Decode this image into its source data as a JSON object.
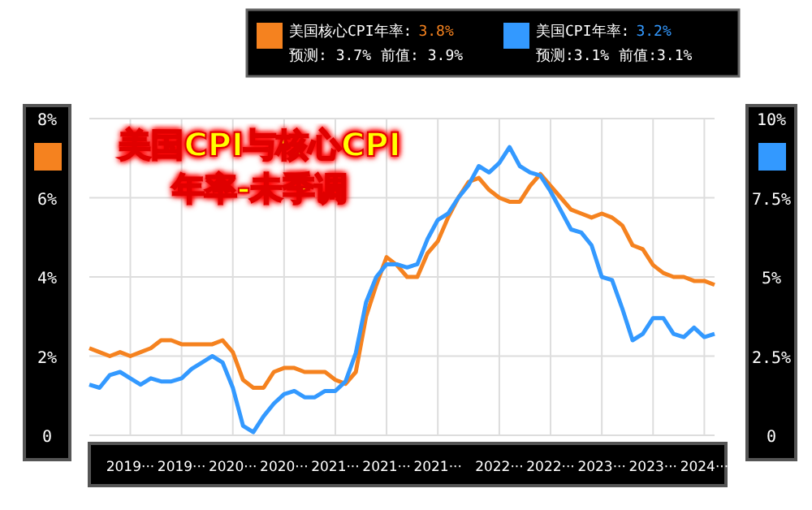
{
  "chart_data": {
    "type": "line",
    "title": "美国CPI与核心CPI 年率-未季调",
    "x": [
      "2019-01",
      "2019-02",
      "2019-03",
      "2019-04",
      "2019-05",
      "2019-06",
      "2019-07",
      "2019-08",
      "2019-09",
      "2019-10",
      "2019-11",
      "2019-12",
      "2020-01",
      "2020-02",
      "2020-03",
      "2020-04",
      "2020-05",
      "2020-06",
      "2020-07",
      "2020-08",
      "2020-09",
      "2020-10",
      "2020-11",
      "2020-12",
      "2021-01",
      "2021-02",
      "2021-03",
      "2021-04",
      "2021-05",
      "2021-06",
      "2021-07",
      "2021-08",
      "2021-09",
      "2021-10",
      "2021-11",
      "2021-12",
      "2022-01",
      "2022-02",
      "2022-03",
      "2022-04",
      "2022-05",
      "2022-06",
      "2022-07",
      "2022-08",
      "2022-09",
      "2022-10",
      "2022-11",
      "2022-12",
      "2023-01",
      "2023-02",
      "2023-03",
      "2023-04",
      "2023-05",
      "2023-06",
      "2023-07",
      "2023-08",
      "2023-09",
      "2023-10",
      "2023-11",
      "2023-12",
      "2024-01",
      "2024-02"
    ],
    "series": [
      {
        "name": "美国核心CPI年率:",
        "color": "#f5821f",
        "values": [
          2.2,
          2.1,
          2.0,
          2.1,
          2.0,
          2.1,
          2.2,
          2.4,
          2.4,
          2.3,
          2.3,
          2.3,
          2.3,
          2.4,
          2.1,
          1.4,
          1.2,
          1.2,
          1.6,
          1.7,
          1.7,
          1.6,
          1.6,
          1.6,
          1.4,
          1.3,
          1.6,
          3.0,
          3.8,
          4.5,
          4.3,
          4.0,
          4.0,
          4.6,
          4.9,
          5.5,
          6.0,
          6.4,
          6.5,
          6.2,
          6.0,
          5.9,
          5.9,
          6.3,
          6.6,
          6.3,
          6.0,
          5.7,
          5.6,
          5.5,
          5.6,
          5.5,
          5.3,
          4.8,
          4.7,
          4.3,
          4.1,
          4.0,
          4.0,
          3.9,
          3.9,
          3.8
        ]
      },
      {
        "name": "美国CPI年率:",
        "color": "#3399ff",
        "axis": "y2",
        "values": [
          1.6,
          1.5,
          1.9,
          2.0,
          1.8,
          1.6,
          1.8,
          1.7,
          1.7,
          1.8,
          2.1,
          2.3,
          2.5,
          2.3,
          1.5,
          0.3,
          0.1,
          0.6,
          1.0,
          1.3,
          1.4,
          1.2,
          1.2,
          1.4,
          1.4,
          1.7,
          2.6,
          4.2,
          5.0,
          5.4,
          5.4,
          5.3,
          5.4,
          6.2,
          6.8,
          7.0,
          7.5,
          7.9,
          8.5,
          8.3,
          8.6,
          9.1,
          8.5,
          8.3,
          8.2,
          7.7,
          7.1,
          6.5,
          6.4,
          6.0,
          5.0,
          4.9,
          4.0,
          3.0,
          3.2,
          3.7,
          3.7,
          3.2,
          3.1,
          3.4,
          3.1,
          3.2
        ]
      }
    ],
    "xlim": [
      "2019-01",
      "2024-02"
    ],
    "xticks": [
      {
        "value": "2019-05",
        "label": "2019···"
      },
      {
        "value": "2019-10",
        "label": "2019···"
      },
      {
        "value": "2020-03",
        "label": "2020···"
      },
      {
        "value": "2020-08",
        "label": "2020···"
      },
      {
        "value": "2021-01",
        "label": "2021···"
      },
      {
        "value": "2021-06",
        "label": "2021···"
      },
      {
        "value": "2021-11",
        "label": "2021···"
      },
      {
        "value": "2022-05",
        "label": "2022···"
      },
      {
        "value": "2022-10",
        "label": "2022···"
      },
      {
        "value": "2023-03",
        "label": "2023···"
      },
      {
        "value": "2023-08",
        "label": "2023···"
      },
      {
        "value": "2024-01",
        "label": "2024···"
      }
    ],
    "ylim": [
      0,
      8
    ],
    "yticks": [
      0,
      {
        "value": 2,
        "label": "2%"
      },
      {
        "value": 4,
        "label": "4%"
      },
      {
        "value": 6,
        "label": "6%"
      },
      {
        "value": 8,
        "label": "8%"
      }
    ],
    "y2lim": [
      0,
      10
    ],
    "y2ticks": [
      0,
      {
        "value": 2.5,
        "label": "2.5%"
      },
      {
        "value": 5,
        "label": "5%"
      },
      {
        "value": 7.5,
        "label": "7.5%"
      },
      {
        "value": 10,
        "label": "10%"
      }
    ],
    "annotations": [
      "3.8%",
      "预测: 3.7%",
      "前值: 3.9%",
      "3.2%",
      "预测:3.1%",
      "前值:3.1%"
    ],
    "grid": true,
    "legend": "top"
  }
}
